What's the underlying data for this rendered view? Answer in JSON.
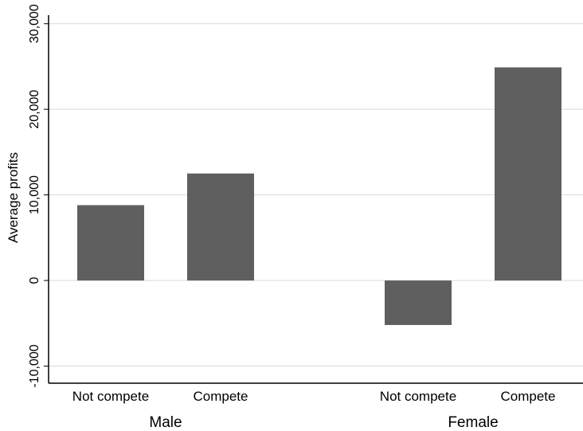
{
  "chart_data": {
    "type": "bar",
    "ylabel": "Average profits",
    "ylim": [
      -12000,
      31000
    ],
    "yticks": [
      -10000,
      0,
      10000,
      20000,
      30000
    ],
    "ytick_labels": [
      "-10,000",
      "0",
      "10,000",
      "20,000",
      "30,000"
    ],
    "grid": true,
    "groups": [
      {
        "label": "Male",
        "categories": [
          "Not compete",
          "Compete"
        ],
        "values": [
          8800,
          12500
        ]
      },
      {
        "label": "Female",
        "categories": [
          "Not compete",
          "Compete"
        ],
        "values": [
          -5200,
          24900
        ]
      }
    ],
    "colors": {
      "bar": "#5f5f5f",
      "grid": "#d9d9d9",
      "axis": "#000000"
    }
  }
}
